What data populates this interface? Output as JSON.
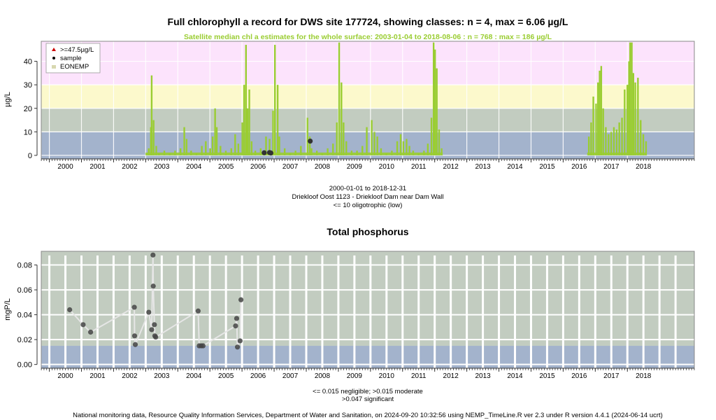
{
  "chart_data": [
    {
      "type": "bar",
      "title": "Full chlorophyll a record for DWS site 177724, showing classes: n = 4, max = 6.06 µg/L",
      "subtitle": "Satellite median chl a estimates for the whole surface: 2003-01-04 to 2018-08-06 : n = 768 : max = 186 µg/L",
      "ylabel": "µg/L",
      "xlabel": "",
      "x_type": "date",
      "xlim": [
        "1999-10-01",
        "2020-02-01"
      ],
      "ylim": [
        -1.5,
        48.5
      ],
      "yticks": [
        0,
        10,
        20,
        30,
        40
      ],
      "xticks": [
        "2000",
        "2001",
        "2002",
        "2003",
        "2004",
        "2005",
        "2006",
        "2007",
        "2008",
        "2009",
        "2010",
        "2011",
        "2012",
        "2013",
        "2014",
        "2015",
        "2016",
        "2017",
        "2018"
      ],
      "bands": [
        {
          "from": -1.5,
          "to": 10,
          "color": "#a3b3cc"
        },
        {
          "from": 10,
          "to": 20,
          "color": "#c2ccc0"
        },
        {
          "from": 20,
          "to": 30,
          "color": "#fcf9cc"
        },
        {
          "from": 30,
          "to": 48.5,
          "color": "#fce3fc"
        }
      ],
      "legend": {
        "position": "top-left",
        "items": [
          {
            "label": ">=47.5µg/L",
            "marker": "triangle",
            "color": "#cc0000"
          },
          {
            "label": "sample",
            "marker": "dot",
            "color": "#000000"
          },
          {
            "label": "EONEMP",
            "marker": "square",
            "color": "#d8d8b0"
          }
        ]
      },
      "series": [
        {
          "name": "EONEMP",
          "color": "#9acd32",
          "points": [
            [
              "2003-01-10",
              1
            ],
            [
              "2003-02-05",
              3
            ],
            [
              "2003-03-01",
              12
            ],
            [
              "2003-03-10",
              34
            ],
            [
              "2003-04-01",
              15
            ],
            [
              "2003-05-01",
              4
            ],
            [
              "2003-06-01",
              1
            ],
            [
              "2003-08-01",
              2
            ],
            [
              "2003-10-01",
              1
            ],
            [
              "2003-12-01",
              2
            ],
            [
              "2004-02-01",
              3
            ],
            [
              "2004-03-15",
              12
            ],
            [
              "2004-04-10",
              7
            ],
            [
              "2004-06-01",
              2
            ],
            [
              "2004-08-01",
              1
            ],
            [
              "2004-10-01",
              4
            ],
            [
              "2004-11-15",
              6
            ],
            [
              "2005-01-05",
              3
            ],
            [
              "2005-02-01",
              8
            ],
            [
              "2005-03-01",
              20
            ],
            [
              "2005-03-20",
              12
            ],
            [
              "2005-05-01",
              4
            ],
            [
              "2005-07-01",
              2
            ],
            [
              "2005-09-01",
              3
            ],
            [
              "2005-10-15",
              9
            ],
            [
              "2005-11-20",
              5
            ],
            [
              "2006-01-05",
              14
            ],
            [
              "2006-01-25",
              30
            ],
            [
              "2006-02-15",
              47
            ],
            [
              "2006-03-05",
              20
            ],
            [
              "2006-03-25",
              28
            ],
            [
              "2006-04-20",
              6
            ],
            [
              "2006-06-01",
              2
            ],
            [
              "2006-08-01",
              3
            ],
            [
              "2006-10-01",
              8
            ],
            [
              "2006-11-10",
              7
            ],
            [
              "2006-12-20",
              19
            ],
            [
              "2007-01-10",
              47
            ],
            [
              "2007-02-10",
              30
            ],
            [
              "2007-03-01",
              8
            ],
            [
              "2007-05-01",
              3
            ],
            [
              "2007-07-01",
              1
            ],
            [
              "2007-09-01",
              2
            ],
            [
              "2007-11-01",
              4
            ],
            [
              "2008-01-15",
              16
            ],
            [
              "2008-02-10",
              8
            ],
            [
              "2008-03-01",
              3
            ],
            [
              "2008-05-01",
              2
            ],
            [
              "2008-07-01",
              1
            ],
            [
              "2008-09-01",
              3
            ],
            [
              "2008-11-01",
              5
            ],
            [
              "2008-12-15",
              14
            ],
            [
              "2009-01-10",
              48
            ],
            [
              "2009-02-05",
              31
            ],
            [
              "2009-03-01",
              14
            ],
            [
              "2009-04-01",
              6
            ],
            [
              "2009-06-01",
              2
            ],
            [
              "2009-08-01",
              2
            ],
            [
              "2009-10-01",
              4
            ],
            [
              "2009-11-20",
              12
            ],
            [
              "2010-01-15",
              15
            ],
            [
              "2010-02-15",
              10
            ],
            [
              "2010-03-20",
              8
            ],
            [
              "2010-05-01",
              3
            ],
            [
              "2010-07-01",
              1
            ],
            [
              "2010-09-01",
              2
            ],
            [
              "2010-11-01",
              6
            ],
            [
              "2010-12-10",
              9
            ],
            [
              "2011-01-10",
              6
            ],
            [
              "2011-02-15",
              7
            ],
            [
              "2011-03-20",
              4
            ],
            [
              "2011-05-01",
              2
            ],
            [
              "2011-07-01",
              1
            ],
            [
              "2011-09-01",
              2
            ],
            [
              "2011-10-15",
              5
            ],
            [
              "2011-11-25",
              16
            ],
            [
              "2011-12-20",
              48
            ],
            [
              "2012-01-05",
              45
            ],
            [
              "2012-01-25",
              37
            ],
            [
              "2012-02-20",
              11
            ],
            [
              "2012-03-20",
              3
            ],
            [
              "2016-10-20",
              8
            ],
            [
              "2016-11-15",
              14
            ],
            [
              "2016-12-10",
              25
            ],
            [
              "2017-01-10",
              22
            ],
            [
              "2017-02-01",
              31
            ],
            [
              "2017-02-20",
              36
            ],
            [
              "2017-03-10",
              38
            ],
            [
              "2017-04-01",
              20
            ],
            [
              "2017-05-01",
              12
            ],
            [
              "2017-06-01",
              9
            ],
            [
              "2017-07-01",
              10
            ],
            [
              "2017-08-01",
              12
            ],
            [
              "2017-09-01",
              11
            ],
            [
              "2017-10-01",
              14
            ],
            [
              "2017-11-01",
              16
            ],
            [
              "2017-12-01",
              28
            ],
            [
              "2018-01-01",
              30
            ],
            [
              "2018-01-20",
              40
            ],
            [
              "2018-02-01",
              48
            ],
            [
              "2018-02-20",
              48
            ],
            [
              "2018-03-10",
              35
            ],
            [
              "2018-04-01",
              31
            ],
            [
              "2018-05-01",
              33
            ],
            [
              "2018-06-01",
              15
            ],
            [
              "2018-07-01",
              9
            ],
            [
              "2018-08-01",
              6
            ]
          ]
        },
        {
          "name": "sample",
          "color": "#333333",
          "points": [
            [
              "2006-09-10",
              1.1
            ],
            [
              "2006-11-10",
              1.2
            ],
            [
              "2006-11-25",
              1.0
            ],
            [
              "2008-02-15",
              6.06
            ]
          ]
        }
      ],
      "notes": [
        "2000-01-01 to 2018-12-31",
        "Driekloof Oost 1123 - Driekloof Dam near Dam Wall",
        "<= 10 oligotrophic (low)"
      ]
    },
    {
      "type": "line",
      "title": "Total phosphorus",
      "ylabel": "mgP/L",
      "xlabel": "",
      "x_type": "date",
      "xlim": [
        "1999-10-01",
        "2020-02-01"
      ],
      "ylim": [
        -0.003,
        0.091
      ],
      "yticks": [
        0.0,
        0.02,
        0.04,
        0.06,
        0.08
      ],
      "ytick_labels": [
        "0.00",
        "0.02",
        "0.04",
        "0.06",
        "0.08"
      ],
      "xticks": [
        "2000",
        "2001",
        "2002",
        "2003",
        "2004",
        "2005",
        "2006",
        "2007",
        "2008",
        "2009",
        "2010",
        "2011",
        "2012",
        "2013",
        "2014",
        "2015",
        "2016",
        "2017",
        "2018"
      ],
      "bands": [
        {
          "from": -0.003,
          "to": 0.015,
          "color": "#a3b3cc"
        },
        {
          "from": 0.015,
          "to": 0.091,
          "color": "#c2ccc0"
        }
      ],
      "series": [
        {
          "name": "Total phosphorus",
          "color": "#444444",
          "points": [
            [
              "2000-08-20",
              0.044
            ],
            [
              "2001-01-20",
              0.032
            ],
            [
              "2001-04-15",
              0.026
            ],
            [
              "2002-08-25",
              0.046
            ],
            [
              "2002-08-28",
              0.023
            ],
            [
              "2002-09-05",
              0.016
            ],
            [
              "2003-02-05",
              0.042
            ],
            [
              "2003-03-10",
              0.028
            ],
            [
              "2003-03-25",
              0.088
            ],
            [
              "2003-03-28",
              0.063
            ],
            [
              "2003-04-10",
              0.032
            ],
            [
              "2003-04-15",
              0.023
            ],
            [
              "2003-04-25",
              0.022
            ],
            [
              "2004-08-20",
              0.043
            ],
            [
              "2004-09-01",
              0.015
            ],
            [
              "2004-09-25",
              0.015
            ],
            [
              "2004-10-15",
              0.015
            ],
            [
              "2005-10-20",
              0.031
            ],
            [
              "2005-11-01",
              0.037
            ],
            [
              "2005-11-10",
              0.014
            ],
            [
              "2005-12-10",
              0.019
            ],
            [
              "2005-12-20",
              0.052
            ]
          ]
        }
      ],
      "notes": [
        "<= 0.015 negligible; >0.015 moderate",
        ">0.047 significant"
      ]
    }
  ],
  "footer": "National monitoring data, Resource Quality Information Services, Department of Water and Sanitation, on 2024-09-20 10:32:56 using NEMP_TimeLine.R ver 2.3 under R version 4.4.1 (2024-06-14 ucrt)"
}
